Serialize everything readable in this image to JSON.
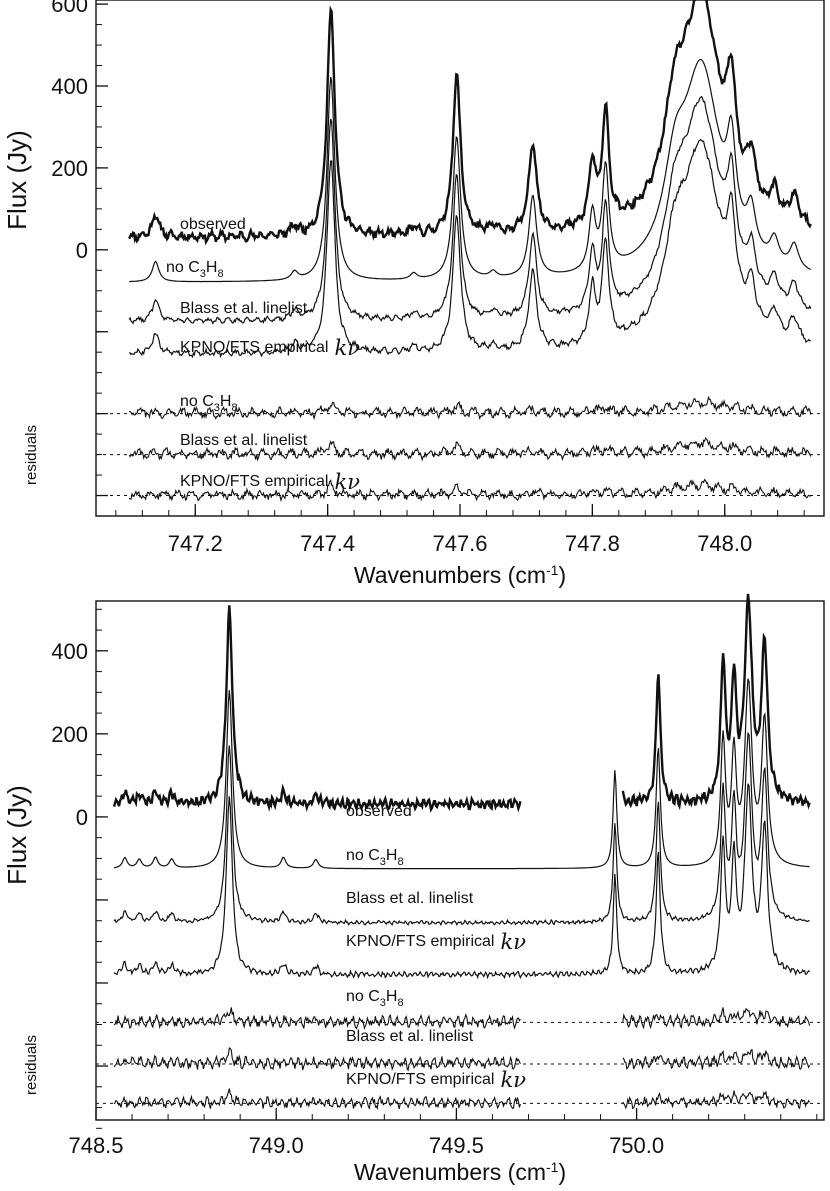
{
  "chart_data": [
    {
      "type": "line",
      "panel": "top",
      "xlabel": "Wavenumbers (cm-1)",
      "ylabel": "Flux (Jy)",
      "xlim": [
        747.05,
        748.15
      ],
      "ylim": [
        -650,
        610
      ],
      "x_ticks": [
        747.2,
        747.4,
        747.6,
        747.8,
        748.0
      ],
      "x_tick_labels": [
        "747.2",
        "747.4",
        "747.6",
        "747.8",
        "748.0"
      ],
      "y_ticks": [
        0,
        200,
        400,
        600
      ],
      "y_tick_labels": [
        "0",
        "200",
        "400",
        "600"
      ],
      "y_minor_ticks": [
        -200,
        -400,
        -600
      ],
      "x_range": [
        747.1,
        748.13
      ],
      "residuals_label": "residuals",
      "peaks": [
        {
          "x": 747.14,
          "w": 0.006,
          "a": 0.1
        },
        {
          "x": 747.35,
          "w": 0.006,
          "a": 0.04
        },
        {
          "x": 747.405,
          "w": 0.007,
          "a": 1.0
        },
        {
          "x": 747.53,
          "w": 0.006,
          "a": 0.03
        },
        {
          "x": 747.595,
          "w": 0.007,
          "a": 0.7
        },
        {
          "x": 747.65,
          "w": 0.006,
          "a": 0.03
        },
        {
          "x": 747.71,
          "w": 0.007,
          "a": 0.4
        },
        {
          "x": 747.8,
          "w": 0.006,
          "a": 0.28
        },
        {
          "x": 747.82,
          "w": 0.006,
          "a": 0.5
        },
        {
          "x": 747.925,
          "w": 0.02,
          "a": 0.35
        },
        {
          "x": 747.965,
          "w": 0.035,
          "a": 1.0
        },
        {
          "x": 748.01,
          "w": 0.008,
          "a": 0.4
        },
        {
          "x": 748.04,
          "w": 0.008,
          "a": 0.2
        },
        {
          "x": 748.075,
          "w": 0.008,
          "a": 0.12
        },
        {
          "x": 748.105,
          "w": 0.008,
          "a": 0.12
        }
      ],
      "series": [
        {
          "name": "observed",
          "label": "observed",
          "offset": 30,
          "scale": 555,
          "noise": 14,
          "bold": true
        },
        {
          "name": "no_c3h8",
          "label_prefix": "no C",
          "sub1": "3",
          "mid": "H",
          "sub2": "8",
          "offset": -80,
          "scale": 500,
          "noise": 0,
          "bold": false
        },
        {
          "name": "blass",
          "label": "Blass et al. linelist",
          "offset": -175,
          "scale": 500,
          "noise": 8,
          "bold": false
        },
        {
          "name": "kpno",
          "label": "KPNO/FTS empirical",
          "kv": "kν",
          "offset": -255,
          "scale": 480,
          "noise": 10,
          "bold": false
        }
      ],
      "residuals": [
        {
          "name": "resid_no_c3h8",
          "label_prefix": "no C",
          "sub1": "3",
          "mid": "H",
          "sub2": "8",
          "baseline": -400,
          "amp": 15
        },
        {
          "name": "resid_blass",
          "label": "Blass et al. linelist",
          "baseline": -500,
          "amp": 15
        },
        {
          "name": "resid_kpno",
          "label": "KPNO/FTS empirical",
          "kv": "kν",
          "baseline": -600,
          "amp": 14
        }
      ]
    },
    {
      "type": "line",
      "panel": "bottom",
      "xlabel": "Wavenumbers (cm-1)",
      "ylabel": "Flux (Jy)",
      "xlim": [
        748.5,
        750.52
      ],
      "ylim": [
        -730,
        520
      ],
      "x_ticks": [
        748.5,
        749.0,
        749.5,
        750.0
      ],
      "x_tick_labels": [
        "748.5",
        "749.0",
        "749.5",
        "750.0"
      ],
      "y_ticks": [
        0,
        200,
        400
      ],
      "y_tick_labels": [
        "0",
        "200",
        "400"
      ],
      "y_minor_ticks": [
        -200,
        -400,
        -600
      ],
      "x_range": [
        748.55,
        750.48
      ],
      "observed_gap": [
        749.68,
        749.96
      ],
      "residuals_label": "residuals",
      "peaks": [
        {
          "x": 748.58,
          "w": 0.008,
          "a": 0.06
        },
        {
          "x": 748.62,
          "w": 0.008,
          "a": 0.05
        },
        {
          "x": 748.665,
          "w": 0.008,
          "a": 0.06
        },
        {
          "x": 748.71,
          "w": 0.008,
          "a": 0.05
        },
        {
          "x": 748.87,
          "w": 0.01,
          "a": 1.0
        },
        {
          "x": 749.02,
          "w": 0.008,
          "a": 0.06
        },
        {
          "x": 749.11,
          "w": 0.008,
          "a": 0.05
        },
        {
          "x": 749.94,
          "w": 0.006,
          "a": 0.55
        },
        {
          "x": 750.06,
          "w": 0.007,
          "a": 0.68
        },
        {
          "x": 750.24,
          "w": 0.008,
          "a": 0.7
        },
        {
          "x": 750.27,
          "w": 0.008,
          "a": 0.6
        },
        {
          "x": 750.31,
          "w": 0.012,
          "a": 1.0
        },
        {
          "x": 750.355,
          "w": 0.01,
          "a": 0.8
        }
      ],
      "series": [
        {
          "name": "observed",
          "label": "observed",
          "offset": 30,
          "scale": 470,
          "noise": 14,
          "bold": true
        },
        {
          "name": "no_c3h8",
          "label_prefix": "no C",
          "sub1": "3",
          "mid": "H",
          "sub2": "8",
          "offset": -125,
          "scale": 430,
          "noise": 0,
          "bold": false
        },
        {
          "name": "blass",
          "label": "Blass et al. linelist",
          "offset": -255,
          "scale": 430,
          "noise": 6,
          "bold": false
        },
        {
          "name": "kpno",
          "label": "KPNO/FTS empirical",
          "kv": "kν",
          "offset": -380,
          "scale": 430,
          "noise": 8,
          "bold": false
        }
      ],
      "residuals": [
        {
          "name": "resid_no_c3h8",
          "label_prefix": "no C",
          "sub1": "3",
          "mid": "H",
          "sub2": "8",
          "baseline": -495,
          "amp": 17
        },
        {
          "name": "resid_blass",
          "label": "Blass et al. linelist",
          "baseline": -595,
          "amp": 17
        },
        {
          "name": "resid_kpno",
          "label": "KPNO/FTS empirical",
          "kv": "kν",
          "baseline": -690,
          "amp": 15
        }
      ]
    }
  ]
}
